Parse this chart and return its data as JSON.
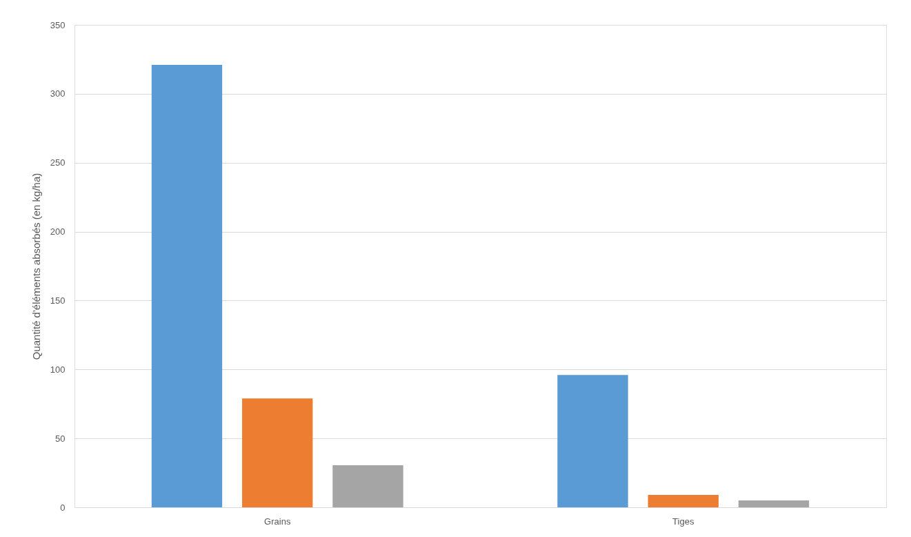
{
  "chart_data": {
    "type": "bar",
    "ylabel": "Quantité d'éléments absorbés (en kg/ha)",
    "categories": [
      "Grains",
      "Tiges"
    ],
    "series": [
      {
        "color": "#5b9bd5",
        "values": [
          321,
          96
        ]
      },
      {
        "color": "#ed7d31",
        "values": [
          79,
          9
        ]
      },
      {
        "color": "#a5a5a5",
        "values": [
          30.5,
          5
        ]
      }
    ],
    "ylim": [
      0,
      350
    ],
    "yticks": [
      0,
      50,
      100,
      150,
      200,
      250,
      300,
      350
    ],
    "grid": "y"
  }
}
